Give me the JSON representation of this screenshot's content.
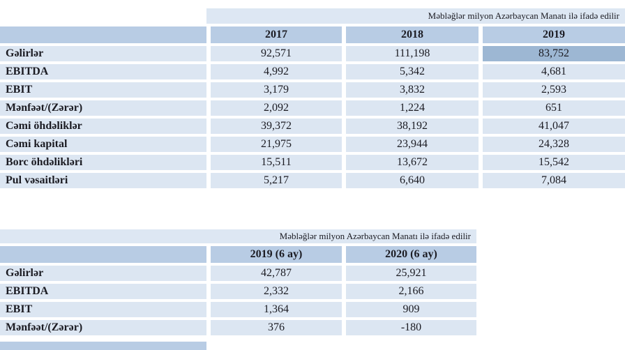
{
  "units_note": "Məbləğlər milyon Azərbaycan Manatı ilə ifadə edilir",
  "colors": {
    "header_band": "#b8cce4",
    "row_band": "#dce6f2",
    "note_band": "#dde7f3",
    "selection": "#9db7d3",
    "text": "#1b1b22"
  },
  "table1": {
    "columns": [
      "2017",
      "2018",
      "2019"
    ],
    "highlight": {
      "row": 0,
      "col": 2
    },
    "rows": [
      {
        "label": "Gəlirlər",
        "values": [
          "92,571",
          "111,198",
          "83,752"
        ]
      },
      {
        "label": "EBITDA",
        "values": [
          "4,992",
          "5,342",
          "4,681"
        ]
      },
      {
        "label": "EBIT",
        "values": [
          "3,179",
          "3,832",
          "2,593"
        ]
      },
      {
        "label": "Mənfəət/(Zərər)",
        "values": [
          "2,092",
          "1,224",
          "651"
        ]
      },
      {
        "label": "Cəmi öhdəliklər",
        "values": [
          "39,372",
          "38,192",
          "41,047"
        ]
      },
      {
        "label": "Cəmi kapital",
        "values": [
          "21,975",
          "23,944",
          "24,328"
        ]
      },
      {
        "label": "Borc öhdəlikləri",
        "values": [
          "15,511",
          "13,672",
          "15,542"
        ]
      },
      {
        "label": "Pul vəsaitləri",
        "values": [
          "5,217",
          "6,640",
          "7,084"
        ]
      }
    ]
  },
  "table2": {
    "columns": [
      "2019 (6 ay)",
      "2020 (6 ay)"
    ],
    "rows": [
      {
        "label": "Gəlirlər",
        "values": [
          "42,787",
          "25,921"
        ]
      },
      {
        "label": "EBITDA",
        "values": [
          "2,332",
          "2,166"
        ]
      },
      {
        "label": "EBIT",
        "values": [
          "1,364",
          "909"
        ]
      },
      {
        "label": "Mənfəət/(Zərər)",
        "values": [
          "376",
          "-180"
        ]
      }
    ]
  }
}
